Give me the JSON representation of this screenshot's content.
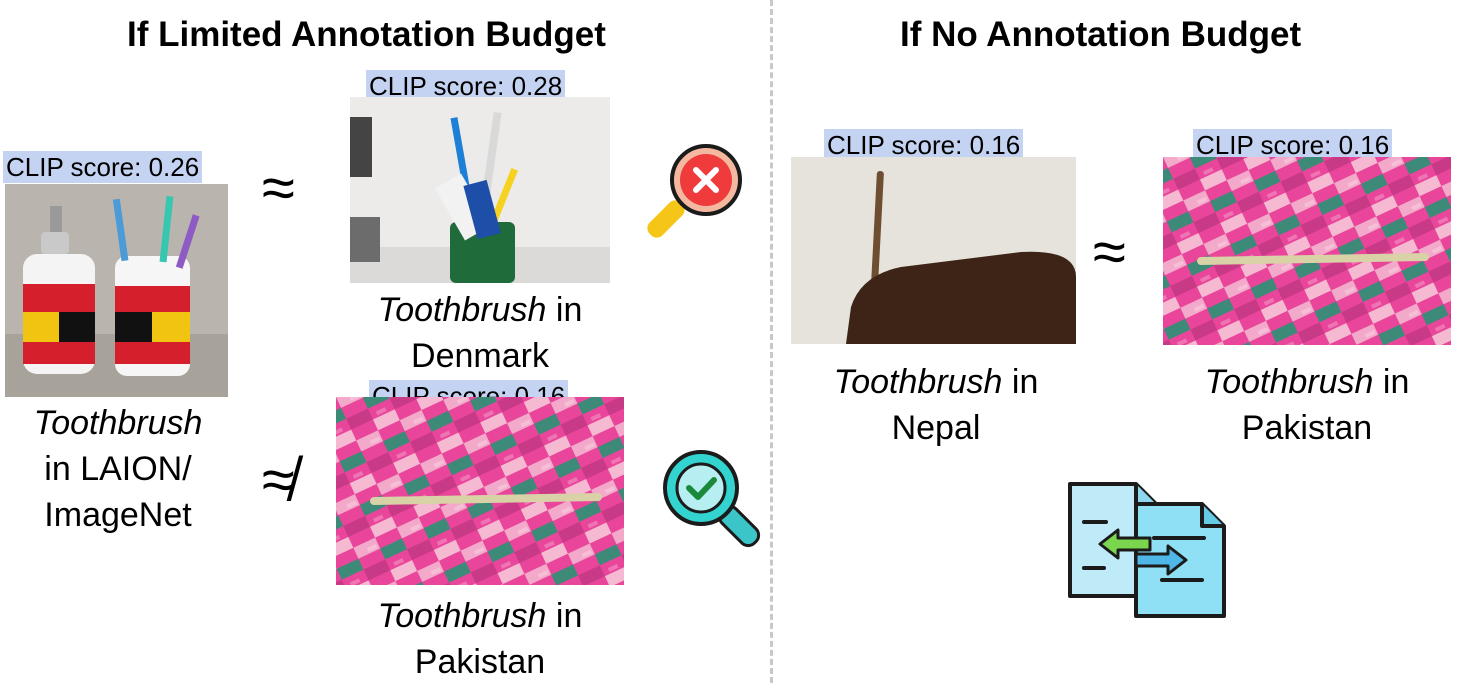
{
  "left_panel": {
    "heading": "If Limited Annotation Budget",
    "reference": {
      "score": "CLIP score: 0.26",
      "caption_italic": "Toothbrush",
      "caption_rest_1": "in LAION/",
      "caption_rest_2": "ImageNet"
    },
    "similar": {
      "relation": "≈",
      "score": "CLIP score: 0.28",
      "caption_italic": "Toothbrush",
      "caption_rest_1": " in",
      "caption_rest_2": "Denmark",
      "verdict_icon": "magnifier-reject-icon"
    },
    "dissimilar": {
      "relation": "≉",
      "score": "CLIP score: 0.16",
      "caption_italic": "Toothbrush",
      "caption_rest_1": " in",
      "caption_rest_2": "Pakistan",
      "verdict_icon": "magnifier-accept-icon"
    }
  },
  "right_panel": {
    "heading": "If No Annotation Budget",
    "relation": "≈",
    "nepal": {
      "score": "CLIP score: 0.16",
      "caption_italic": "Toothbrush",
      "caption_rest_1": " in",
      "caption_rest_2": "Nepal"
    },
    "pakistan": {
      "score": "CLIP score: 0.16",
      "caption_italic": "Toothbrush",
      "caption_rest_1": " in",
      "caption_rest_2": "Pakistan"
    },
    "exchange_icon": "document-exchange-icon"
  }
}
